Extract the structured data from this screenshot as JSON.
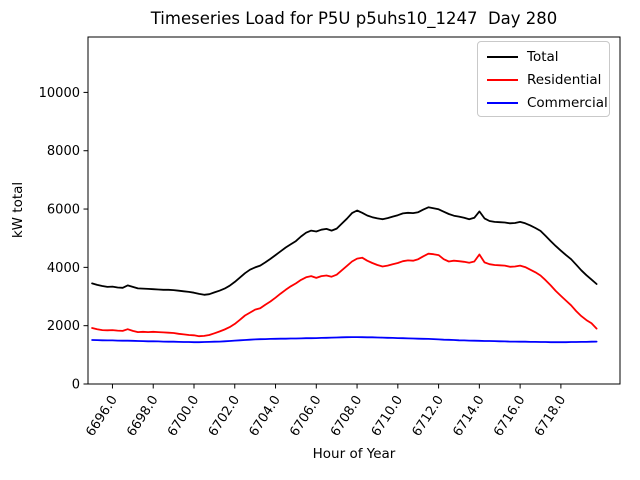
{
  "chart_data": {
    "type": "line",
    "title": "Timeseries Load for P5U p5uhs10_1247  Day 280",
    "xlabel": "Hour of Year",
    "ylabel": "kW total",
    "xlim": [
      6694.8,
      6720.9
    ],
    "ylim": [
      0,
      11900
    ],
    "grid": false,
    "legend_position": "upper right",
    "xticks": {
      "values": [
        6696,
        6698,
        6700,
        6702,
        6704,
        6706,
        6708,
        6710,
        6712,
        6714,
        6716,
        6718
      ],
      "labels": [
        "6696.0",
        "6698.0",
        "6700.0",
        "6702.0",
        "6704.0",
        "6706.0",
        "6708.0",
        "6710.0",
        "6712.0",
        "6714.0",
        "6716.0",
        "6718.0"
      ]
    },
    "yticks": {
      "values": [
        0,
        2000,
        4000,
        6000,
        8000,
        10000
      ],
      "labels": [
        "0",
        "2000",
        "4000",
        "6000",
        "8000",
        "10000"
      ]
    },
    "x": [
      6695.0,
      6695.25,
      6695.5,
      6695.75,
      6696.0,
      6696.25,
      6696.5,
      6696.75,
      6697.0,
      6697.25,
      6697.5,
      6697.75,
      6698.0,
      6698.25,
      6698.5,
      6698.75,
      6699.0,
      6699.25,
      6699.5,
      6699.75,
      6700.0,
      6700.25,
      6700.5,
      6700.75,
      6701.0,
      6701.25,
      6701.5,
      6701.75,
      6702.0,
      6702.25,
      6702.5,
      6702.75,
      6703.0,
      6703.25,
      6703.5,
      6703.75,
      6704.0,
      6704.25,
      6704.5,
      6704.75,
      6705.0,
      6705.25,
      6705.5,
      6705.75,
      6706.0,
      6706.25,
      6706.5,
      6706.75,
      6707.0,
      6707.25,
      6707.5,
      6707.75,
      6708.0,
      6708.25,
      6708.5,
      6708.75,
      6709.0,
      6709.25,
      6709.5,
      6709.75,
      6710.0,
      6710.25,
      6710.5,
      6710.75,
      6711.0,
      6711.25,
      6711.5,
      6711.75,
      6712.0,
      6712.25,
      6712.5,
      6712.75,
      6713.0,
      6713.25,
      6713.5,
      6713.75,
      6714.0,
      6714.25,
      6714.5,
      6714.75,
      6715.0,
      6715.25,
      6715.5,
      6715.75,
      6716.0,
      6716.25,
      6716.5,
      6716.75,
      6717.0,
      6717.25,
      6717.5,
      6717.75,
      6718.0,
      6718.25,
      6718.5,
      6718.75,
      6719.0,
      6719.25,
      6719.5,
      6719.75
    ],
    "series": [
      {
        "name": "Total",
        "color": "#000000",
        "values": [
          3450,
          3400,
          3360,
          3330,
          3340,
          3310,
          3300,
          3380,
          3330,
          3280,
          3270,
          3260,
          3250,
          3240,
          3230,
          3230,
          3220,
          3200,
          3180,
          3160,
          3130,
          3090,
          3060,
          3080,
          3140,
          3200,
          3270,
          3370,
          3500,
          3650,
          3800,
          3920,
          4000,
          4060,
          4170,
          4290,
          4420,
          4550,
          4680,
          4790,
          4900,
          5060,
          5190,
          5260,
          5230,
          5290,
          5320,
          5260,
          5330,
          5500,
          5670,
          5860,
          5950,
          5870,
          5780,
          5720,
          5680,
          5650,
          5690,
          5740,
          5790,
          5850,
          5870,
          5860,
          5890,
          5980,
          6060,
          6030,
          5990,
          5910,
          5830,
          5770,
          5740,
          5700,
          5650,
          5700,
          5920,
          5680,
          5590,
          5560,
          5550,
          5540,
          5510,
          5520,
          5560,
          5510,
          5440,
          5350,
          5250,
          5080,
          4900,
          4730,
          4570,
          4420,
          4280,
          4090,
          3900,
          3730,
          3580,
          3430
        ]
      },
      {
        "name": "Residential",
        "color": "#ff0000",
        "values": [
          1920,
          1880,
          1850,
          1840,
          1850,
          1830,
          1820,
          1880,
          1820,
          1780,
          1790,
          1780,
          1790,
          1780,
          1770,
          1760,
          1750,
          1720,
          1700,
          1680,
          1670,
          1640,
          1650,
          1680,
          1740,
          1800,
          1870,
          1950,
          2060,
          2200,
          2350,
          2450,
          2550,
          2600,
          2720,
          2830,
          2960,
          3100,
          3230,
          3350,
          3450,
          3570,
          3660,
          3700,
          3640,
          3700,
          3720,
          3680,
          3750,
          3900,
          4050,
          4200,
          4300,
          4330,
          4230,
          4150,
          4080,
          4030,
          4060,
          4110,
          4150,
          4210,
          4240,
          4230,
          4280,
          4380,
          4470,
          4450,
          4420,
          4280,
          4200,
          4230,
          4210,
          4190,
          4160,
          4200,
          4440,
          4170,
          4110,
          4080,
          4070,
          4060,
          4020,
          4030,
          4060,
          4010,
          3920,
          3830,
          3720,
          3560,
          3380,
          3190,
          3020,
          2860,
          2700,
          2500,
          2330,
          2190,
          2080,
          1900
        ]
      },
      {
        "name": "Commercial",
        "color": "#0000ff",
        "values": [
          1510,
          1505,
          1500,
          1495,
          1495,
          1490,
          1485,
          1485,
          1480,
          1475,
          1470,
          1465,
          1465,
          1460,
          1455,
          1450,
          1450,
          1445,
          1440,
          1440,
          1435,
          1435,
          1440,
          1445,
          1450,
          1455,
          1465,
          1475,
          1490,
          1500,
          1510,
          1520,
          1530,
          1535,
          1540,
          1545,
          1550,
          1555,
          1555,
          1560,
          1560,
          1565,
          1570,
          1570,
          1575,
          1580,
          1585,
          1590,
          1595,
          1600,
          1605,
          1610,
          1610,
          1605,
          1600,
          1600,
          1595,
          1590,
          1585,
          1580,
          1575,
          1570,
          1565,
          1560,
          1555,
          1550,
          1545,
          1540,
          1530,
          1520,
          1515,
          1510,
          1500,
          1495,
          1490,
          1485,
          1480,
          1475,
          1475,
          1470,
          1465,
          1460,
          1455,
          1455,
          1450,
          1450,
          1445,
          1445,
          1440,
          1440,
          1435,
          1435,
          1435,
          1435,
          1440,
          1440,
          1445,
          1445,
          1450,
          1455
        ]
      }
    ]
  }
}
